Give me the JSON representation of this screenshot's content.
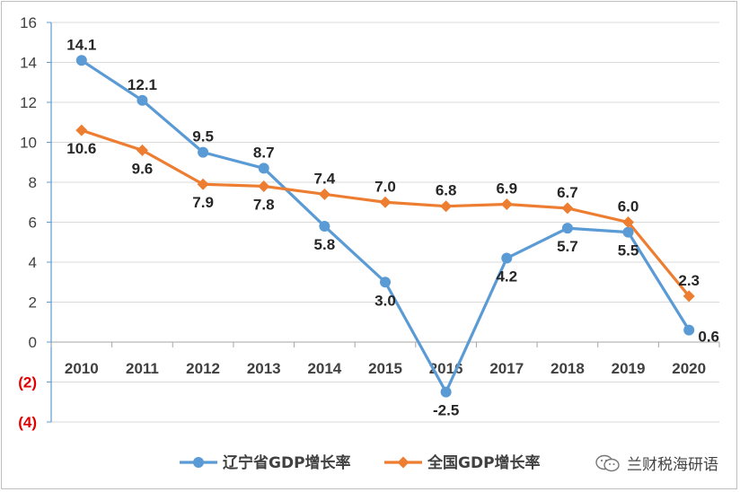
{
  "chart_data": {
    "type": "line",
    "categories": [
      "2010",
      "2011",
      "2012",
      "2013",
      "2014",
      "2015",
      "2016",
      "2017",
      "2018",
      "2019",
      "2020"
    ],
    "series": [
      {
        "name": "辽宁省GDP增长率",
        "color": "#5b9bd5",
        "marker": "circle",
        "values": [
          14.1,
          12.1,
          9.5,
          8.7,
          5.8,
          3.0,
          -2.5,
          4.2,
          5.7,
          5.5,
          0.6
        ],
        "labels": [
          "14.1",
          "12.1",
          "9.5",
          "8.7",
          "5.8",
          "3.0",
          "-2.5",
          "4.2",
          "5.7",
          "5.5",
          "0.6"
        ]
      },
      {
        "name": "全国GDP增长率",
        "color": "#ed7d31",
        "marker": "diamond",
        "values": [
          10.6,
          9.6,
          7.9,
          7.8,
          7.4,
          7.0,
          6.8,
          6.9,
          6.7,
          6.0,
          2.3
        ],
        "labels": [
          "10.6",
          "9.6",
          "7.9",
          "7.8",
          "7.4",
          "7.0",
          "6.8",
          "6.9",
          "6.7",
          "6.0",
          "2.3"
        ]
      }
    ],
    "y_ticks": [
      {
        "value": 16,
        "label": "16",
        "color": "#404040"
      },
      {
        "value": 14,
        "label": "14",
        "color": "#404040"
      },
      {
        "value": 12,
        "label": "12",
        "color": "#404040"
      },
      {
        "value": 10,
        "label": "10",
        "color": "#404040"
      },
      {
        "value": 8,
        "label": "8",
        "color": "#404040"
      },
      {
        "value": 6,
        "label": "6",
        "color": "#404040"
      },
      {
        "value": 4,
        "label": "4",
        "color": "#404040"
      },
      {
        "value": 2,
        "label": "2",
        "color": "#404040"
      },
      {
        "value": 0,
        "label": "0",
        "color": "#404040"
      },
      {
        "value": -2,
        "label": "(2)",
        "color": "#e00000"
      },
      {
        "value": -4,
        "label": "(4)",
        "color": "#e00000"
      }
    ],
    "ylim": [
      -4,
      16
    ],
    "grid": true,
    "legend_position": "bottom-center"
  },
  "watermark": {
    "text": "兰财税海研语",
    "icon": "wechat-icon"
  }
}
